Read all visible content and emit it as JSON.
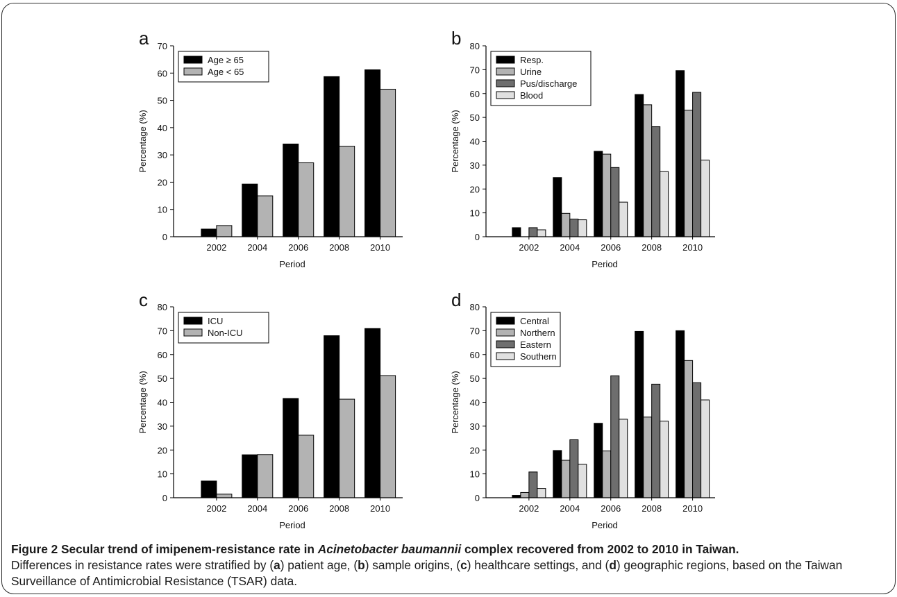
{
  "chart_data": [
    {
      "panel": "a",
      "type": "bar",
      "categories": [
        "2002",
        "2004",
        "2006",
        "2008",
        "2010"
      ],
      "series": [
        {
          "name": "Age ≥ 65",
          "color": "#000000",
          "values": [
            2.8,
            19.3,
            34,
            58.7,
            61.2
          ]
        },
        {
          "name": "Age < 65",
          "color": "#b3b3b3",
          "values": [
            4.1,
            15,
            27.1,
            33.2,
            54.1
          ]
        }
      ],
      "xlabel": "Period",
      "ylabel": "Percentage (%)",
      "ylim": [
        0,
        70
      ],
      "yticks": [
        0,
        10,
        20,
        30,
        40,
        50,
        60,
        70
      ],
      "legend": "top-left",
      "grid": false
    },
    {
      "panel": "b",
      "type": "bar",
      "categories": [
        "2002",
        "2004",
        "2006",
        "2008",
        "2010"
      ],
      "series": [
        {
          "name": "Resp.",
          "color": "#000000",
          "values": [
            3.8,
            24.8,
            35.8,
            59.6,
            69.6
          ]
        },
        {
          "name": "Urine",
          "color": "#b3b3b3",
          "values": [
            0,
            9.8,
            34.6,
            55.3,
            53
          ]
        },
        {
          "name": "Pus/discharge",
          "color": "#6e6e6e",
          "values": [
            3.8,
            7.4,
            29,
            46.1,
            60.5
          ]
        },
        {
          "name": "Blood",
          "color": "#e0e0e0",
          "values": [
            2.9,
            7.1,
            14.5,
            27.3,
            32.1
          ]
        }
      ],
      "xlabel": "Period",
      "ylabel": "Percentage (%)",
      "ylim": [
        0,
        80
      ],
      "yticks": [
        0,
        10,
        20,
        30,
        40,
        50,
        60,
        70,
        80
      ],
      "legend": "top-left",
      "grid": false
    },
    {
      "panel": "c",
      "type": "bar",
      "categories": [
        "2002",
        "2004",
        "2006",
        "2008",
        "2010"
      ],
      "series": [
        {
          "name": "ICU",
          "color": "#000000",
          "values": [
            7,
            18,
            41.6,
            67.9,
            70.9
          ]
        },
        {
          "name": "Non-ICU",
          "color": "#b3b3b3",
          "values": [
            1.5,
            18.1,
            26.2,
            41.3,
            51.2
          ]
        }
      ],
      "xlabel": "Period",
      "ylabel": "Percentage (%)",
      "ylim": [
        0,
        80
      ],
      "yticks": [
        0,
        10,
        20,
        30,
        40,
        50,
        60,
        70,
        80
      ],
      "legend": "top-left",
      "grid": false
    },
    {
      "panel": "d",
      "type": "bar",
      "categories": [
        "2002",
        "2004",
        "2006",
        "2008",
        "2010"
      ],
      "series": [
        {
          "name": "Central",
          "color": "#000000",
          "values": [
            1,
            19.8,
            31.2,
            69.7,
            70
          ]
        },
        {
          "name": "Northern",
          "color": "#b3b3b3",
          "values": [
            2.2,
            15.7,
            19.6,
            33.8,
            57.5
          ]
        },
        {
          "name": "Eastern",
          "color": "#6e6e6e",
          "values": [
            10.8,
            24.3,
            51.1,
            47.6,
            48.2
          ]
        },
        {
          "name": "Southern",
          "color": "#e0e0e0",
          "values": [
            3.9,
            14,
            32.9,
            32.1,
            41
          ]
        }
      ],
      "xlabel": "Period",
      "ylabel": "Percentage (%)",
      "ylim": [
        0,
        80
      ],
      "yticks": [
        0,
        10,
        20,
        30,
        40,
        50,
        60,
        70,
        80
      ],
      "legend": "top-left",
      "grid": false
    }
  ],
  "caption": {
    "label": "Figure 2",
    "title_part1": "Secular trend of imipenem-resistance rate in ",
    "title_italic": "Acinetobacter baumannii",
    "title_part2": " complex recovered from 2002 to 2010 in Taiwan.",
    "body_1": "Differences in resistance rates were stratified by (",
    "a": "a",
    "body_2": ") patient age, (",
    "b": "b",
    "body_3": ") sample origins, (",
    "c": "c",
    "body_4": ") healthcare settings, and (",
    "d": "d",
    "body_5": ") geographic regions, based on the Taiwan Surveillance of Antimicrobial Resistance (TSAR) data."
  }
}
